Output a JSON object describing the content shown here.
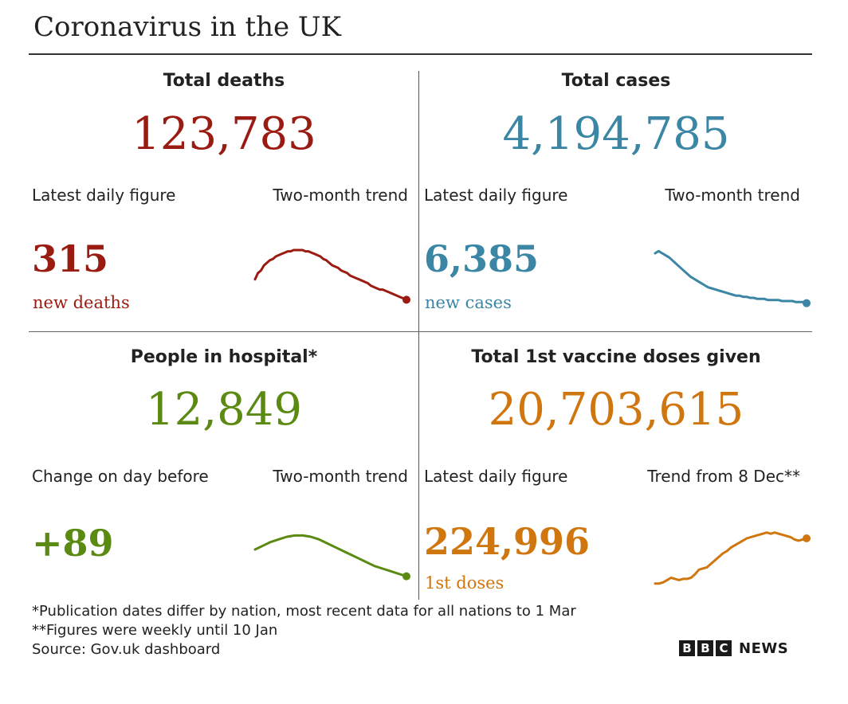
{
  "title": "Coronavirus in the UK",
  "colors": {
    "deaths": "#9a1b12",
    "cases": "#3a86a4",
    "hospital": "#5b8a12",
    "vaccine": "#d0760f"
  },
  "panels": {
    "deaths": {
      "heading": "Total deaths",
      "total": "123,783",
      "left_label": "Latest daily figure",
      "right_label": "Two-month trend",
      "daily": "315",
      "sub": "new deaths"
    },
    "cases": {
      "heading": "Total cases",
      "total": "4,194,785",
      "left_label": "Latest daily figure",
      "right_label": "Two-month trend",
      "daily": "6,385",
      "sub": "new cases"
    },
    "hospital": {
      "heading": "People in hospital*",
      "total": "12,849",
      "left_label": "Change on day before",
      "right_label": "Two-month trend",
      "daily": "+89",
      "sub": ""
    },
    "vaccine": {
      "heading": "Total 1st vaccine doses given",
      "total": "20,703,615",
      "left_label": "Latest daily figure",
      "right_label": "Trend from 8 Dec**",
      "daily": "224,996",
      "sub": "1st doses"
    }
  },
  "chart_data": [
    {
      "type": "line",
      "title": "Two-month trend",
      "series": [
        {
          "name": "",
          "values": [
            22,
            27,
            29,
            33,
            35,
            37,
            38,
            40,
            41,
            42,
            43,
            44,
            44,
            45,
            45,
            45,
            45,
            44,
            44,
            43,
            42,
            41,
            40,
            38,
            37,
            35,
            33,
            32,
            31,
            29,
            28,
            27,
            25,
            24,
            23,
            22,
            21,
            20,
            19,
            17,
            16,
            15,
            14,
            14,
            13,
            12,
            11,
            10,
            9,
            8,
            7,
            6
          ]
        }
      ],
      "ylim": [
        0,
        50
      ]
    },
    {
      "type": "line",
      "title": "Two-month trend",
      "series": [
        {
          "name": "",
          "values": [
            54,
            56,
            54,
            52,
            50,
            47,
            44,
            41,
            38,
            35,
            32,
            30,
            28,
            26,
            24,
            22,
            21,
            20,
            19,
            18,
            17,
            16,
            15,
            14,
            14,
            13,
            13,
            12,
            12,
            11,
            11,
            11,
            10,
            10,
            10,
            10,
            9,
            9,
            9,
            9,
            8,
            8,
            8,
            7
          ]
        }
      ],
      "ylim": [
        0,
        60
      ]
    },
    {
      "type": "line",
      "title": "Two-month trend",
      "series": [
        {
          "name": "",
          "values": [
            30,
            33,
            36,
            38,
            40,
            41,
            41,
            40,
            38,
            35,
            32,
            29,
            26,
            23,
            20,
            17,
            15,
            13,
            11,
            9
          ]
        }
      ],
      "ylim": [
        0,
        50
      ]
    },
    {
      "type": "line",
      "title": "Trend from 8 Dec**",
      "series": [
        {
          "name": "",
          "values": [
            5,
            5,
            6,
            8,
            10,
            9,
            8,
            9,
            9,
            10,
            13,
            17,
            18,
            19,
            22,
            25,
            28,
            31,
            33,
            36,
            38,
            40,
            42,
            44,
            45,
            46,
            47,
            48,
            49,
            48,
            49,
            48,
            47,
            46,
            45,
            43,
            42,
            43,
            44
          ]
        }
      ],
      "ylim": [
        0,
        55
      ]
    }
  ],
  "footnotes": {
    "note1": "*Publication dates differ by nation, most recent data for all nations to 1 Mar",
    "note2": "**Figures were weekly until 10 Jan",
    "source": "Source: Gov.uk dashboard"
  },
  "logo": {
    "b1": "B",
    "b2": "B",
    "b3": "C",
    "news": "NEWS"
  }
}
